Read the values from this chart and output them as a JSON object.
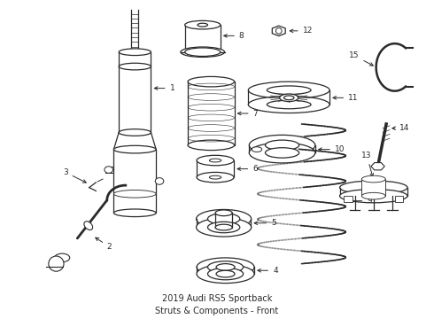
{
  "title": "2019 Audi RS5 Sportback\nStruts & Components - Front",
  "title_fontsize": 7,
  "background_color": "#ffffff",
  "line_color": "#2a2a2a",
  "lw": 0.9,
  "xlim": [
    0,
    490
  ],
  "ylim": [
    0,
    360
  ]
}
